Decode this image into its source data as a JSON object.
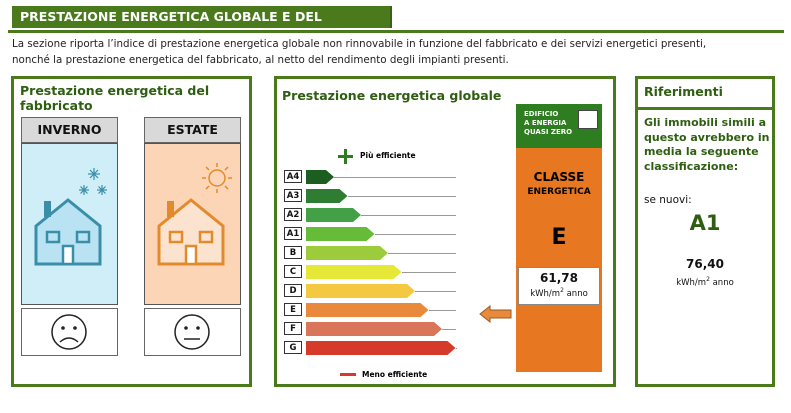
{
  "header": {
    "title": "PRESTAZIONE ENERGETICA GLOBALE E DEL FABBRICATO"
  },
  "intro": {
    "line1": "La sezione riporta l’indice di prestazione energetica globale non rinnovabile in funzione del fabbricato e dei servizi energetici presenti,",
    "line2": "nonché la prestazione energetica del fabbricato, al netto del rendimento degli impianti presenti."
  },
  "building_panel": {
    "title": "Prestazione energetica del fabbricato",
    "winter_label": "INVERNO",
    "summer_label": "ESTATE",
    "colors": {
      "winter": "#cfeef8",
      "summer": "#fbd5b5",
      "house_winter": "#3a8ea8",
      "house_summer": "#e38b2c"
    }
  },
  "global_panel": {
    "title": "Prestazione energetica globale",
    "more_efficient": "Più efficiente",
    "less_efficient": "Meno efficiente",
    "classes": [
      {
        "label": "A4",
        "color": "#1b5e20"
      },
      {
        "label": "A3",
        "color": "#2e7d32"
      },
      {
        "label": "A2",
        "color": "#43a047"
      },
      {
        "label": "A1",
        "color": "#66bb38"
      },
      {
        "label": "B",
        "color": "#9ccc3c"
      },
      {
        "label": "C",
        "color": "#e5e837"
      },
      {
        "label": "D",
        "color": "#f5c842"
      },
      {
        "label": "E",
        "color": "#e8893c"
      },
      {
        "label": "F",
        "color": "#d9765a"
      },
      {
        "label": "G",
        "color": "#d63a2a"
      }
    ],
    "nzeb_label_1": "EDIFICIO",
    "nzeb_label_2": "A ENERGIA",
    "nzeb_label_3": "QUASI ZERO",
    "class_title": "CLASSE",
    "class_subtitle": "ENERGETICA",
    "class_value": "E",
    "index_value": "61,78",
    "index_unit": "kWh/m",
    "index_unit_sup": "2",
    "index_unit_tail": " anno"
  },
  "references_panel": {
    "title": "Riferimenti",
    "text1": "Gli immobili simili a",
    "text2": "questo avrebbero in",
    "text3": "media la seguente",
    "text4": "classificazione:",
    "new_label": "se nuovi:",
    "class": "A1",
    "value": "76,40",
    "unit": "kWh/m",
    "unit_sup": "2",
    "unit_tail": " anno"
  }
}
